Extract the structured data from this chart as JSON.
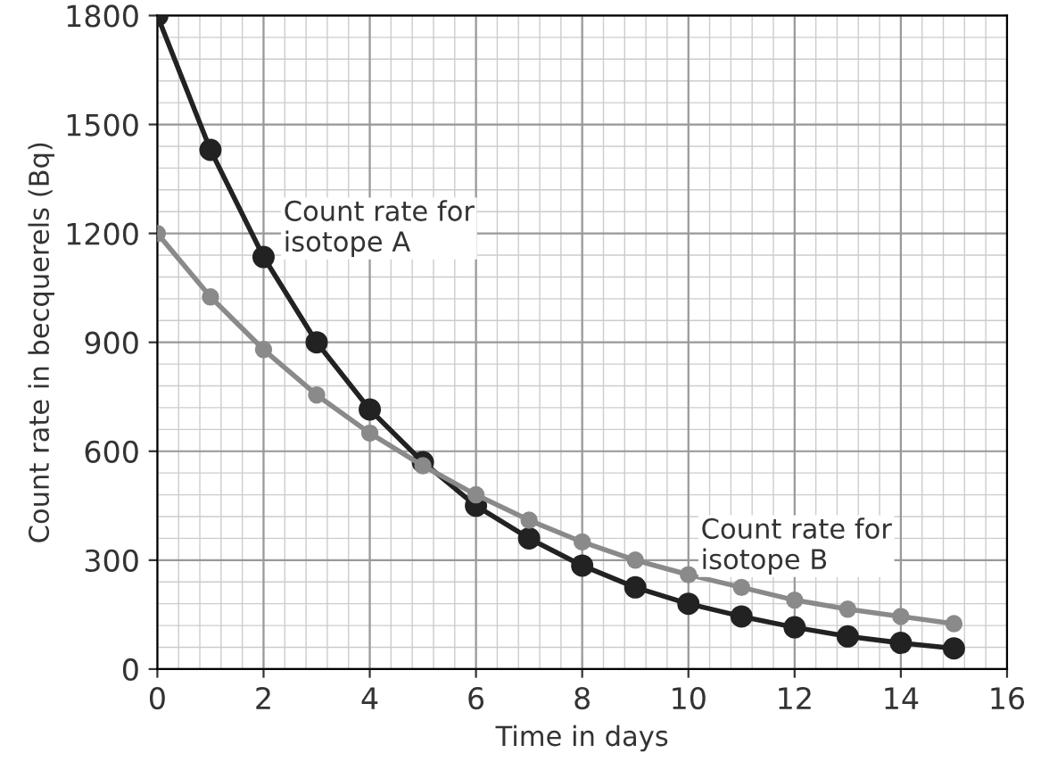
{
  "chart_data": {
    "type": "line",
    "xlabel": "Time in days",
    "ylabel": "Count rate in becquerels (Bq)",
    "x": [
      0,
      1,
      2,
      3,
      4,
      5,
      6,
      7,
      8,
      9,
      10,
      11,
      12,
      13,
      14,
      15
    ],
    "series": [
      {
        "color": "#222222",
        "values": [
          1800,
          1430,
          1135,
          900,
          715,
          570,
          450,
          360,
          285,
          225,
          180,
          145,
          115,
          90,
          72,
          57
        ]
      },
      {
        "color": "#8a8a8a",
        "values": [
          1200,
          1025,
          880,
          755,
          650,
          560,
          480,
          410,
          350,
          300,
          260,
          225,
          190,
          165,
          145,
          125
        ]
      }
    ],
    "annotations": [
      {
        "text": "Count rate for\nisotope A",
        "x": 2,
        "y": 1135
      },
      {
        "text": "Count rate for\nisotope B",
        "x": 10,
        "y": 260
      }
    ],
    "xlim": [
      0,
      16
    ],
    "ylim": [
      0,
      1800
    ],
    "xticks": [
      0,
      2,
      4,
      6,
      8,
      10,
      12,
      14,
      16
    ],
    "yticks": [
      0,
      300,
      600,
      900,
      1200,
      1500,
      1800
    ],
    "grid": true,
    "marker": "circle",
    "line_style": "solid"
  }
}
